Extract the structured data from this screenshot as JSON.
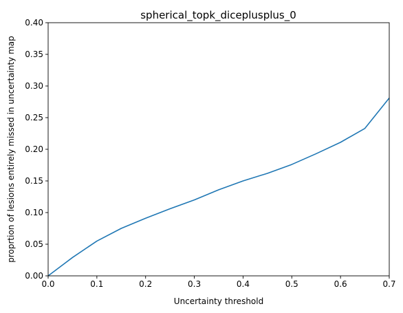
{
  "chart_data": {
    "type": "line",
    "title": "spherical_topk_diceplusplus_0",
    "xlabel": "Uncertainty threshold",
    "ylabel": "proprtion of lesions entirely missed in uncertainty map",
    "xlim": [
      0.0,
      0.7
    ],
    "ylim": [
      0.0,
      0.4
    ],
    "xticks": [
      0.0,
      0.1,
      0.2,
      0.3,
      0.4,
      0.5,
      0.6,
      0.7
    ],
    "xtick_labels": [
      "0.0",
      "0.1",
      "0.2",
      "0.3",
      "0.4",
      "0.5",
      "0.6",
      "0.7"
    ],
    "yticks": [
      0.0,
      0.05,
      0.1,
      0.15,
      0.2,
      0.25,
      0.3,
      0.35,
      0.4
    ],
    "ytick_labels": [
      "0.00",
      "0.05",
      "0.10",
      "0.15",
      "0.20",
      "0.25",
      "0.30",
      "0.35",
      "0.40"
    ],
    "grid": false,
    "series": [
      {
        "name": "spherical_topk_diceplusplus_0",
        "color": "#1f77b4",
        "x": [
          0.0,
          0.05,
          0.1,
          0.15,
          0.2,
          0.25,
          0.3,
          0.35,
          0.4,
          0.45,
          0.5,
          0.55,
          0.6,
          0.65,
          0.7
        ],
        "y": [
          0.0,
          0.029,
          0.055,
          0.075,
          0.091,
          0.106,
          0.12,
          0.136,
          0.15,
          0.162,
          0.176,
          0.193,
          0.211,
          0.233,
          0.281
        ]
      }
    ]
  }
}
